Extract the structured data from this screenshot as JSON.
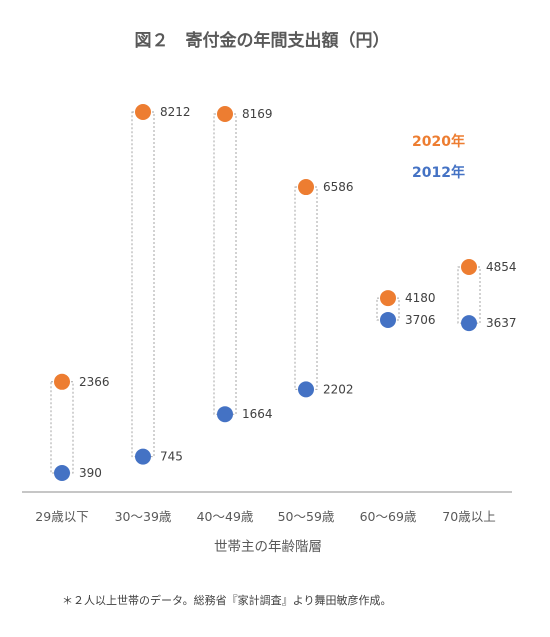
{
  "chart_data": {
    "type": "dot-range",
    "title": "図２　寄付金の年間支出額（円）",
    "xlabel": "世帯主の年齢階層",
    "ylabel": "",
    "ylim": [
      0,
      9000
    ],
    "grid": false,
    "legend_position": "top-right",
    "categories": [
      "29歳以下",
      "30〜39歳",
      "40〜49歳",
      "50〜59歳",
      "60〜69歳",
      "70歳以上"
    ],
    "series": [
      {
        "name": "2020年",
        "color": "#ED7D31",
        "values": [
          2366,
          8212,
          8169,
          6586,
          4180,
          4854
        ]
      },
      {
        "name": "2012年",
        "color": "#4472C4",
        "values": [
          390,
          745,
          1664,
          2202,
          3706,
          3637
        ]
      }
    ],
    "note": "＊２人以上世帯のデータ。総務省『家計調査』より舞田敏彦作成。"
  }
}
